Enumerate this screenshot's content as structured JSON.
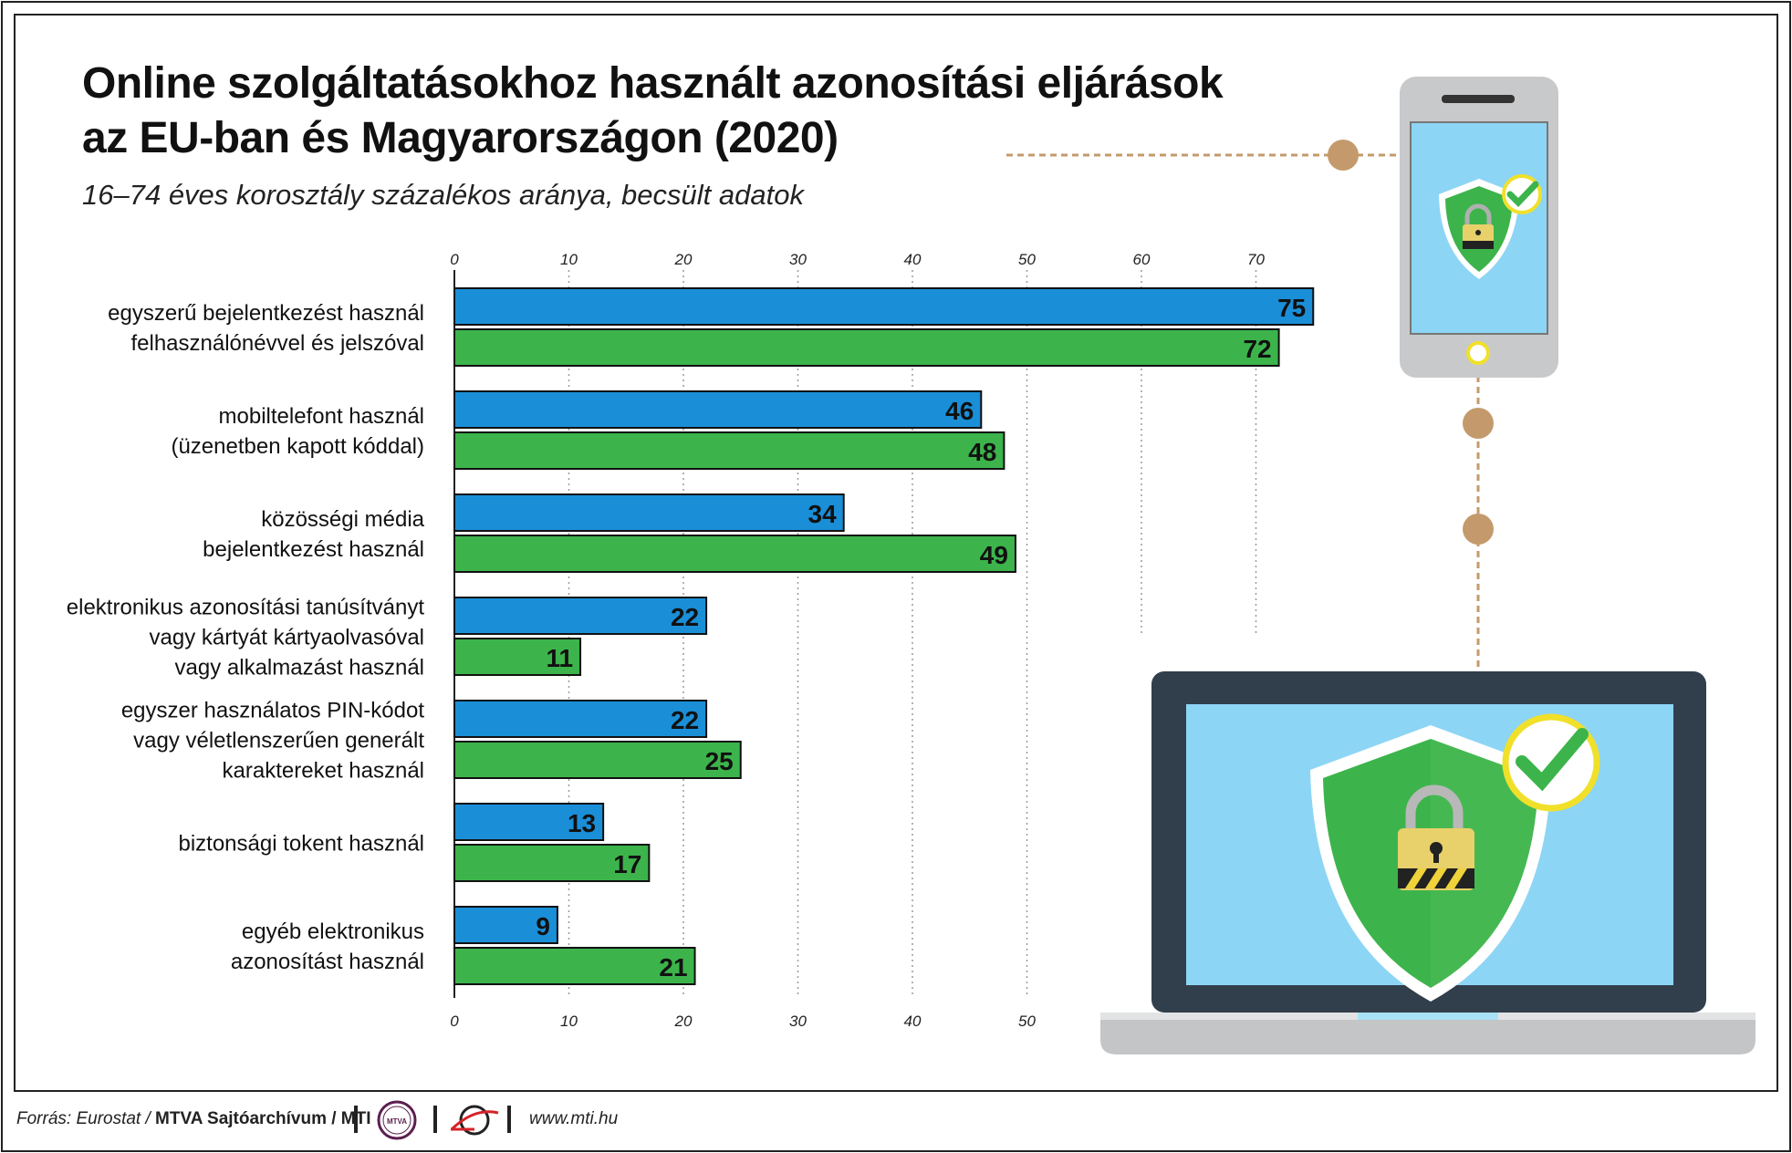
{
  "header": {
    "title_line1": "Online szolgáltatásokhoz használt azonosítási eljárások",
    "title_line2": "az EU-ban és Magyarországon (2020)",
    "subtitle": "16–74 éves korosztály százalékos aránya, becsült adatok"
  },
  "footer": {
    "source_prefix": "Forrás: Eurostat / ",
    "source_org": "MTVA Sajtóarchívum / MTI",
    "mtva_logo_text": "MTVA",
    "url": "www.mti.hu"
  },
  "colors": {
    "eu_bar": "#1a8fd8",
    "hu_bar": "#3cb44b",
    "accent_connector": "#c49a6c",
    "shield_green": "#3cb44b",
    "screen_blue": "#8dd5f5"
  },
  "icons": [
    "smartphone-icon",
    "laptop-icon",
    "shield-lock-icon",
    "checkmark-icon",
    "mtva-logo",
    "mti-logo"
  ],
  "chart_data": {
    "type": "bar",
    "orientation": "horizontal",
    "categories": [
      [
        "egyszerű bejelentkezést használ",
        "felhasználónévvel és jelszóval"
      ],
      [
        "mobiltelefont használ",
        "(üzenetben kapott kóddal)"
      ],
      [
        "közösségi média",
        "bejelentkezést használ"
      ],
      [
        "elektronikus azonosítási tanúsítványt",
        "vagy kártyát kártyaolvasóval",
        "vagy alkalmazást használ"
      ],
      [
        "egyszer használatos PIN-kódot",
        "vagy véletlenszerűen generált",
        "karaktereket használ"
      ],
      [
        "biztonsági tokent használ"
      ],
      [
        "egyéb elektronikus",
        "azonosítást használ"
      ]
    ],
    "series": [
      {
        "color": "#1a8fd8",
        "values": [
          75,
          46,
          34,
          22,
          22,
          13,
          9
        ]
      },
      {
        "color": "#3cb44b",
        "values": [
          72,
          48,
          49,
          11,
          25,
          17,
          21
        ]
      }
    ],
    "xlim": [
      0,
      75
    ],
    "top_ticks": [
      0,
      10,
      20,
      30,
      40,
      50,
      60,
      70
    ],
    "bottom_ticks": [
      0,
      10,
      20,
      30,
      40,
      50
    ],
    "grid": true,
    "title": "",
    "xlabel": "",
    "ylabel": ""
  }
}
